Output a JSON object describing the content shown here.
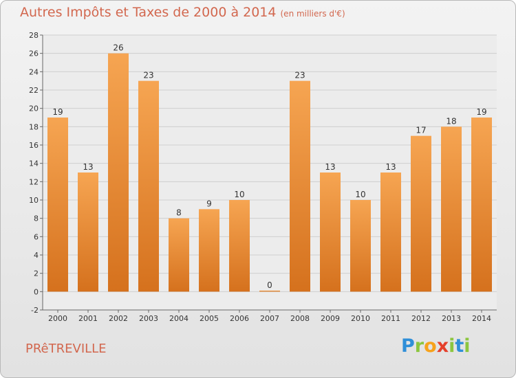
{
  "chart_data": {
    "type": "bar",
    "title": "Autres Impôts et Taxes de 2000 à 2014",
    "subtitle": "(en milliers d'€)",
    "categories": [
      "2000",
      "2001",
      "2002",
      "2003",
      "2004",
      "2005",
      "2006",
      "2007",
      "2008",
      "2009",
      "2010",
      "2011",
      "2012",
      "2013",
      "2014"
    ],
    "values": [
      19,
      13,
      26,
      23,
      8,
      9,
      10,
      0,
      23,
      13,
      10,
      13,
      17,
      18,
      19
    ],
    "ylim": [
      -2,
      28
    ],
    "yticks": [
      -2,
      0,
      2,
      4,
      6,
      8,
      10,
      12,
      14,
      16,
      18,
      20,
      22,
      24,
      26,
      28
    ],
    "grid": true,
    "colors": {
      "bar_top": "#f6a552",
      "bar_bottom": "#d5711d",
      "label": "#d2674e"
    }
  },
  "commune": "PRêTREVILLE",
  "logo": {
    "letters": [
      "P",
      "r",
      "o",
      "x",
      "i",
      "t",
      "i"
    ],
    "colors": [
      "#2f8fd8",
      "#8cc63f",
      "#f7a21b",
      "#e5402b",
      "#8cc63f",
      "#2f8fd8",
      "#8cc63f"
    ]
  }
}
